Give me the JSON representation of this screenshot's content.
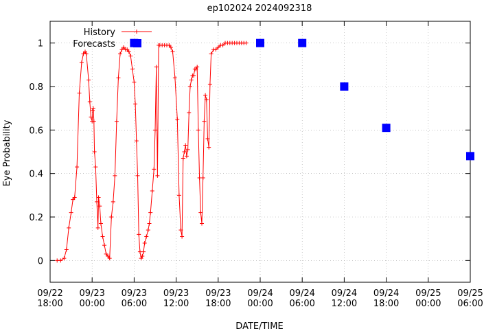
{
  "chart_data": {
    "type": "line",
    "title": "ep102024 2024092318",
    "xlabel": "DATE/TIME",
    "ylabel": "Eye Probability",
    "xlim": [
      "2024-09-22T18:00",
      "2024-09-25T06:00"
    ],
    "ylim": [
      -0.1,
      1.1
    ],
    "yticks": [
      0,
      0.2,
      0.4,
      0.6,
      0.8,
      1
    ],
    "ytick_labels": [
      "0",
      "0.2",
      "0.4",
      "0.6",
      "0.8",
      "1"
    ],
    "xticks": [
      {
        "t": "2024-09-22T18:00",
        "date": "09/22",
        "time": "18:00"
      },
      {
        "t": "2024-09-23T00:00",
        "date": "09/23",
        "time": "00:00"
      },
      {
        "t": "2024-09-23T06:00",
        "date": "09/23",
        "time": "06:00"
      },
      {
        "t": "2024-09-23T12:00",
        "date": "09/23",
        "time": "12:00"
      },
      {
        "t": "2024-09-23T18:00",
        "date": "09/23",
        "time": "18:00"
      },
      {
        "t": "2024-09-24T00:00",
        "date": "09/24",
        "time": "00:00"
      },
      {
        "t": "2024-09-24T06:00",
        "date": "09/24",
        "time": "06:00"
      },
      {
        "t": "2024-09-24T12:00",
        "date": "09/24",
        "time": "12:00"
      },
      {
        "t": "2024-09-24T18:00",
        "date": "09/24",
        "time": "18:00"
      },
      {
        "t": "2024-09-25T00:00",
        "date": "09/25",
        "time": "00:00"
      },
      {
        "t": "2024-09-25T06:00",
        "date": "09/25",
        "time": "06:00"
      }
    ],
    "legend": "top-left",
    "series": [
      {
        "name": "History",
        "style": "line+cross",
        "color": "#ff0000",
        "points": [
          [
            "2024-09-22T19:00",
            0.0
          ],
          [
            "2024-09-22T19:30",
            0.0
          ],
          [
            "2024-09-22T20:00",
            0.01
          ],
          [
            "2024-09-22T20:20",
            0.05
          ],
          [
            "2024-09-22T20:40",
            0.15
          ],
          [
            "2024-09-22T21:00",
            0.22
          ],
          [
            "2024-09-22T21:15",
            0.28
          ],
          [
            "2024-09-22T21:30",
            0.29
          ],
          [
            "2024-09-22T21:50",
            0.43
          ],
          [
            "2024-09-22T22:10",
            0.77
          ],
          [
            "2024-09-22T22:30",
            0.91
          ],
          [
            "2024-09-22T22:45",
            0.95
          ],
          [
            "2024-09-22T23:00",
            0.96
          ],
          [
            "2024-09-22T23:10",
            0.95
          ],
          [
            "2024-09-22T23:30",
            0.83
          ],
          [
            "2024-09-22T23:40",
            0.73
          ],
          [
            "2024-09-22T23:50",
            0.66
          ],
          [
            "2024-09-23T00:00",
            0.64
          ],
          [
            "2024-09-23T00:05",
            0.69
          ],
          [
            "2024-09-23T00:10",
            0.7
          ],
          [
            "2024-09-23T00:15",
            0.64
          ],
          [
            "2024-09-23T00:20",
            0.5
          ],
          [
            "2024-09-23T00:30",
            0.43
          ],
          [
            "2024-09-23T00:40",
            0.27
          ],
          [
            "2024-09-23T00:50",
            0.15
          ],
          [
            "2024-09-23T00:55",
            0.29
          ],
          [
            "2024-09-23T01:05",
            0.25
          ],
          [
            "2024-09-23T01:15",
            0.17
          ],
          [
            "2024-09-23T01:30",
            0.11
          ],
          [
            "2024-09-23T01:45",
            0.07
          ],
          [
            "2024-09-23T02:00",
            0.03
          ],
          [
            "2024-09-23T02:15",
            0.02
          ],
          [
            "2024-09-23T02:30",
            0.01
          ],
          [
            "2024-09-23T02:45",
            0.2
          ],
          [
            "2024-09-23T03:00",
            0.27
          ],
          [
            "2024-09-23T03:15",
            0.39
          ],
          [
            "2024-09-23T03:30",
            0.64
          ],
          [
            "2024-09-23T03:45",
            0.84
          ],
          [
            "2024-09-23T04:00",
            0.95
          ],
          [
            "2024-09-23T04:15",
            0.97
          ],
          [
            "2024-09-23T04:30",
            0.98
          ],
          [
            "2024-09-23T04:45",
            0.97
          ],
          [
            "2024-09-23T05:00",
            0.97
          ],
          [
            "2024-09-23T05:15",
            0.96
          ],
          [
            "2024-09-23T05:30",
            0.94
          ],
          [
            "2024-09-23T05:45",
            0.88
          ],
          [
            "2024-09-23T06:00",
            0.82
          ],
          [
            "2024-09-23T06:10",
            0.72
          ],
          [
            "2024-09-23T06:20",
            0.55
          ],
          [
            "2024-09-23T06:30",
            0.39
          ],
          [
            "2024-09-23T06:40",
            0.12
          ],
          [
            "2024-09-23T06:50",
            0.04
          ],
          [
            "2024-09-23T07:00",
            0.01
          ],
          [
            "2024-09-23T07:10",
            0.02
          ],
          [
            "2024-09-23T07:20",
            0.04
          ],
          [
            "2024-09-23T07:30",
            0.08
          ],
          [
            "2024-09-23T07:45",
            0.11
          ],
          [
            "2024-09-23T08:00",
            0.14
          ],
          [
            "2024-09-23T08:10",
            0.17
          ],
          [
            "2024-09-23T08:20",
            0.22
          ],
          [
            "2024-09-23T08:35",
            0.32
          ],
          [
            "2024-09-23T08:50",
            0.42
          ],
          [
            "2024-09-23T09:00",
            0.6
          ],
          [
            "2024-09-23T09:10",
            0.89
          ],
          [
            "2024-09-23T09:20",
            0.39
          ],
          [
            "2024-09-23T09:30",
            0.99
          ],
          [
            "2024-09-23T09:40",
            0.99
          ],
          [
            "2024-09-23T10:00",
            0.99
          ],
          [
            "2024-09-23T10:20",
            0.99
          ],
          [
            "2024-09-23T10:40",
            0.99
          ],
          [
            "2024-09-23T11:00",
            0.99
          ],
          [
            "2024-09-23T11:15",
            0.98
          ],
          [
            "2024-09-23T11:30",
            0.96
          ],
          [
            "2024-09-23T11:50",
            0.84
          ],
          [
            "2024-09-23T12:10",
            0.65
          ],
          [
            "2024-09-23T12:25",
            0.3
          ],
          [
            "2024-09-23T12:40",
            0.14
          ],
          [
            "2024-09-23T12:50",
            0.11
          ],
          [
            "2024-09-23T13:00",
            0.47
          ],
          [
            "2024-09-23T13:10",
            0.5
          ],
          [
            "2024-09-23T13:20",
            0.53
          ],
          [
            "2024-09-23T13:30",
            0.48
          ],
          [
            "2024-09-23T13:40",
            0.51
          ],
          [
            "2024-09-23T13:50",
            0.68
          ],
          [
            "2024-09-23T14:00",
            0.8
          ],
          [
            "2024-09-23T14:10",
            0.83
          ],
          [
            "2024-09-23T14:20",
            0.85
          ],
          [
            "2024-09-23T14:30",
            0.85
          ],
          [
            "2024-09-23T14:40",
            0.88
          ],
          [
            "2024-09-23T14:50",
            0.88
          ],
          [
            "2024-09-23T15:00",
            0.89
          ],
          [
            "2024-09-23T15:10",
            0.6
          ],
          [
            "2024-09-23T15:20",
            0.38
          ],
          [
            "2024-09-23T15:30",
            0.22
          ],
          [
            "2024-09-23T15:40",
            0.17
          ],
          [
            "2024-09-23T15:50",
            0.38
          ],
          [
            "2024-09-23T16:00",
            0.64
          ],
          [
            "2024-09-23T16:10",
            0.76
          ],
          [
            "2024-09-23T16:20",
            0.74
          ],
          [
            "2024-09-23T16:30",
            0.56
          ],
          [
            "2024-09-23T16:40",
            0.52
          ],
          [
            "2024-09-23T16:50",
            0.81
          ],
          [
            "2024-09-23T17:00",
            0.95
          ],
          [
            "2024-09-23T17:20",
            0.97
          ],
          [
            "2024-09-23T17:40",
            0.97
          ],
          [
            "2024-09-23T18:00",
            0.98
          ],
          [
            "2024-09-23T18:20",
            0.99
          ],
          [
            "2024-09-23T18:40",
            0.99
          ],
          [
            "2024-09-23T19:00",
            1.0
          ],
          [
            "2024-09-23T19:20",
            1.0
          ],
          [
            "2024-09-23T19:40",
            1.0
          ],
          [
            "2024-09-23T20:00",
            1.0
          ],
          [
            "2024-09-23T20:20",
            1.0
          ],
          [
            "2024-09-23T20:40",
            1.0
          ],
          [
            "2024-09-23T21:00",
            1.0
          ],
          [
            "2024-09-23T21:20",
            1.0
          ],
          [
            "2024-09-23T21:40",
            1.0
          ],
          [
            "2024-09-23T22:00",
            1.0
          ]
        ]
      },
      {
        "name": "Forecasts",
        "style": "square-markers",
        "color": "#0000ff",
        "points": [
          [
            "2024-09-23T06:00",
            1.0
          ],
          [
            "2024-09-24T00:00",
            1.0
          ],
          [
            "2024-09-24T06:00",
            1.0
          ],
          [
            "2024-09-24T12:00",
            0.8
          ],
          [
            "2024-09-24T18:00",
            0.61
          ],
          [
            "2024-09-25T06:00",
            0.48
          ]
        ]
      }
    ]
  }
}
